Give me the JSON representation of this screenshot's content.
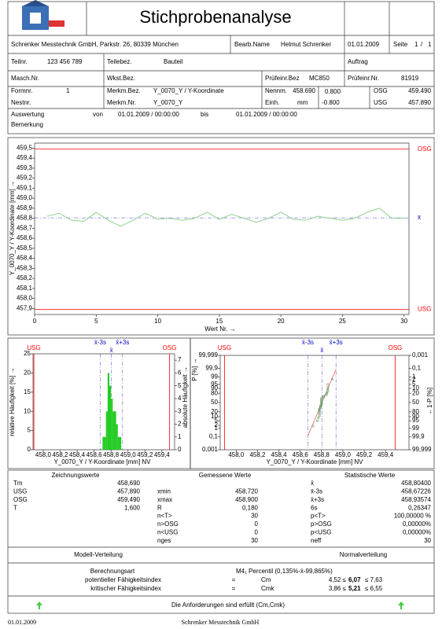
{
  "header": {
    "title": "Stichprobenanalyse",
    "company": "Schrenker Messtechnik GmbH, Parkstr. 26, 80339 München",
    "editor_label": "Bearb.Name",
    "editor": "Helmut Schrenker",
    "date": "01.01.2009",
    "page_label": "Seite",
    "page": "1",
    "page_sep": "/",
    "page_total": "1",
    "part_no_label": "Teilnr.",
    "part_no": "123 456 789",
    "part_name_label": "Teilebez.",
    "part_name": "Bauteil",
    "order_label": "Auftrag",
    "machine_label": "Masch.Nr.",
    "tool_label": "Wkst.Bez.",
    "gauge_name_label": "Prüfeinr.Bez",
    "gauge_name": "MC850",
    "gauge_no_label": "Prüfeinr.Nr.",
    "gauge_no": "81919",
    "form_label": "Formnr.",
    "form": "1",
    "nest_label": "Nestnr.",
    "feature_name_label": "Merkm.Bez.",
    "feature_name": "Y_0070_Y /  Y-Koordinate",
    "feature_no_label": "Merkm.Nr.",
    "feature_no": "Y_0070_Y",
    "nominal_label": "Nennm.",
    "nominal": "458.690",
    "unit_label": "Einh.",
    "unit": "mm",
    "upper_tol": "0.800",
    "lower_tol": "-0.800",
    "osg_label": "OSG",
    "osg": "459.490",
    "usg_label": "USG",
    "usg": "457.890",
    "evaluation_label": "Auswertung",
    "from_label": "von",
    "from": "01.01.2009 / 00:00:00",
    "to_label": "bis",
    "to": "01.01.2009 / 00:00:00",
    "remark_label": "Bemerkung"
  },
  "chart_data": [
    {
      "type": "line",
      "y_label": "Y_0070_Y /  Y-Koordinate [mm] →",
      "x_label": "Wert Nr. →",
      "x": [
        1,
        2,
        3,
        4,
        5,
        6,
        7,
        8,
        9,
        10,
        11,
        12,
        13,
        14,
        15,
        16,
        17,
        18,
        19,
        20,
        21,
        22,
        23,
        24,
        25,
        26,
        27,
        28,
        29,
        30
      ],
      "series": [
        {
          "color": "#8fd18f",
          "values": [
            458.82,
            458.85,
            458.78,
            458.77,
            458.86,
            458.78,
            458.72,
            458.78,
            458.85,
            458.79,
            458.8,
            458.78,
            458.8,
            458.86,
            458.79,
            458.84,
            458.8,
            458.76,
            458.8,
            458.86,
            458.79,
            458.78,
            458.82,
            458.8,
            458.78,
            458.8,
            458.86,
            458.9,
            458.8,
            458.8
          ]
        }
      ],
      "xlim": [
        0,
        30.4
      ],
      "xticks": [
        0,
        5,
        10,
        15,
        20,
        25,
        30
      ],
      "ylim": [
        457.84,
        459.55
      ],
      "yticks": [
        {
          "value": 457.9,
          "label": "457,9"
        },
        {
          "value": 458.0,
          "label": "458,0"
        },
        {
          "value": 458.1,
          "label": "458,1"
        },
        {
          "value": 458.2,
          "label": "458,2"
        },
        {
          "value": 458.3,
          "label": "458,3"
        },
        {
          "value": 458.4,
          "label": "458,4"
        },
        {
          "value": 458.5,
          "label": "458,5"
        },
        {
          "value": 458.6,
          "label": "458,6"
        },
        {
          "value": 458.7,
          "label": "458,7"
        },
        {
          "value": 458.8,
          "label": "458,8"
        },
        {
          "value": 458.9,
          "label": "458,9"
        },
        {
          "value": 459.0,
          "label": "459,0"
        },
        {
          "value": 459.1,
          "label": "459,1"
        },
        {
          "value": 459.2,
          "label": "459,2"
        },
        {
          "value": 459.3,
          "label": "459,3"
        },
        {
          "value": 459.4,
          "label": "459,4"
        },
        {
          "value": 459.5,
          "label": "459,5"
        }
      ],
      "reference_lines": [
        {
          "label": "OSG",
          "value": 459.49,
          "color": "#ff0000"
        },
        {
          "label": "USG",
          "value": 457.89,
          "color": "#ff0000"
        },
        {
          "label": "x̄",
          "value": 458.804,
          "color": "#0000cc",
          "dashed": true
        }
      ]
    },
    {
      "type": "histogram",
      "x_label": "Y_0070_Y / Y-Koordinate [mm]  NV",
      "y_label": "relative Häufigkeit  [%] →",
      "y2_label": "absolute Häufigkeit →",
      "bins": [
        458.7,
        458.72,
        458.74,
        458.76,
        458.78,
        458.8,
        458.82,
        458.84,
        458.86,
        458.88,
        458.9,
        458.92
      ],
      "series": [
        {
          "color": "#22cc22",
          "axis": "y2",
          "values": [
            1,
            1,
            3,
            6,
            5,
            4,
            3,
            3,
            2,
            1,
            1
          ]
        }
      ],
      "xlim": [
        457.88,
        459.55
      ],
      "xticks": [
        {
          "value": 458.0,
          "label": "458,0"
        },
        {
          "value": 458.2,
          "label": "458,2"
        },
        {
          "value": 458.4,
          "label": "458,4"
        },
        {
          "value": 458.6,
          "label": "458,6"
        },
        {
          "value": 458.8,
          "label": "458,8"
        },
        {
          "value": 459.0,
          "label": "459,0"
        },
        {
          "value": 459.2,
          "label": "459,2"
        },
        {
          "value": 459.4,
          "label": "459,4"
        }
      ],
      "ylim": [
        0,
        25
      ],
      "yticks": [
        0,
        5,
        10,
        15,
        20,
        25
      ],
      "y2lim": [
        0,
        7.5
      ],
      "y2ticks": [
        0,
        1,
        2,
        3,
        4,
        5,
        6,
        7
      ],
      "reference_lines": [
        {
          "label": "USG",
          "value": 457.89,
          "color": "#ff0000"
        },
        {
          "label": "x̄-3s",
          "value": 458.67226,
          "color": "#0000cc",
          "dashed": true
        },
        {
          "label": "x̄",
          "value": 458.804,
          "color": "#0000cc",
          "dashed": true
        },
        {
          "label": "x̄+3s",
          "value": 458.93574,
          "color": "#0000cc",
          "dashed": true
        },
        {
          "label": "OSG",
          "value": 459.49,
          "color": "#ff0000"
        }
      ]
    },
    {
      "type": "probability",
      "x_label": "Y_0070_Y / Y-Koordinate [mm]  NV",
      "y_label": "P [%] →",
      "y2_label": "←1-P [%]",
      "yscale": "probit",
      "x": [
        458.72,
        458.76,
        458.77,
        458.78,
        458.78,
        458.78,
        458.78,
        458.78,
        458.78,
        458.79,
        458.79,
        458.79,
        458.8,
        458.8,
        458.8,
        458.8,
        458.8,
        458.8,
        458.8,
        458.8,
        458.82,
        458.82,
        458.84,
        458.85,
        458.85,
        458.86,
        458.86,
        458.86,
        458.86,
        458.9
      ],
      "series": [
        {
          "color": "#669966",
          "values": [
            1.7,
            5.0,
            8.3,
            11.7,
            15.0,
            18.3,
            21.7,
            25.0,
            28.3,
            31.7,
            35.0,
            38.3,
            41.7,
            45.0,
            48.3,
            51.7,
            55.0,
            58.3,
            61.7,
            65.0,
            68.3,
            71.7,
            75.0,
            78.3,
            81.7,
            85.0,
            88.3,
            91.7,
            95.0,
            98.3
          ]
        }
      ],
      "fit": {
        "color": "#ff6666",
        "x": [
          458.67226,
          458.93574
        ],
        "values": [
          0.135,
          99.865
        ]
      },
      "xlim": [
        457.85,
        459.62
      ],
      "xticks": [
        {
          "value": 458.0,
          "label": "458,0"
        },
        {
          "value": 458.2,
          "label": "458,2"
        },
        {
          "value": 458.4,
          "label": "458,4"
        },
        {
          "value": 458.6,
          "label": "458,6"
        },
        {
          "value": 458.8,
          "label": "458,8"
        },
        {
          "value": 459.0,
          "label": "459,0"
        },
        {
          "value": 459.2,
          "label": "459,2"
        },
        {
          "value": 459.4,
          "label": "459,4"
        }
      ],
      "ylim": [
        0.001,
        99.999
      ],
      "yticks": [
        {
          "value": 0.001,
          "label": "0,001"
        },
        {
          "value": 0.1,
          "label": "0,1"
        },
        1,
        2,
        5,
        10,
        20,
        50,
        80,
        90,
        95,
        99,
        {
          "value": 99.9,
          "label": "99,9"
        },
        {
          "value": 99.999,
          "label": "99,999"
        }
      ],
      "y2lim": [
        99.999,
        0.001
      ],
      "y2ticks": [
        {
          "value": 99.999,
          "label": "99,999"
        },
        {
          "value": 99.9,
          "label": "99,9"
        },
        99,
        95,
        90,
        80,
        50,
        20,
        10,
        5,
        2,
        1,
        {
          "value": 0.1,
          "label": "0,1"
        },
        {
          "value": 0.001,
          "label": "0,001"
        }
      ],
      "reference_lines": [
        {
          "label": "USG",
          "value": 457.89,
          "color": "#ff0000"
        },
        {
          "label": "x̄-3s",
          "value": 458.67226,
          "color": "#0000cc",
          "dashed": true
        },
        {
          "label": "x̄",
          "value": 458.804,
          "color": "#0000cc",
          "dashed": true
        },
        {
          "label": "x̄+3s",
          "value": 458.93574,
          "color": "#0000cc",
          "dashed": true
        },
        {
          "label": "OSG",
          "value": 459.49,
          "color": "#ff0000"
        }
      ]
    }
  ],
  "stats": {
    "headers": [
      "Zeichnungswerte",
      "Gemessene Werte",
      "Statistische Werte"
    ],
    "drawing": [
      [
        "Tm",
        "458,690"
      ],
      [
        "USG",
        "457,890"
      ],
      [
        "OSG",
        "459,490"
      ],
      [
        "T",
        "1,600"
      ]
    ],
    "measured": [
      [
        "xmin",
        "458,720"
      ],
      [
        "xmax",
        "458,900"
      ],
      [
        "R",
        "0,180"
      ],
      [
        "n<T>",
        "30"
      ],
      [
        "n>OSG",
        "0"
      ],
      [
        "n<USG",
        "0"
      ],
      [
        "nges",
        "30"
      ]
    ],
    "statistical": [
      [
        "x̄",
        "458,80400"
      ],
      [
        "x̄-3s",
        "458,67226"
      ],
      [
        "x̄+3s",
        "458,93574"
      ],
      [
        "6s",
        "0,26347"
      ],
      [
        "p<T>",
        "100,00000 %"
      ],
      [
        "p>OSG",
        "0,00000%"
      ],
      [
        "p<USG",
        "0,00000%"
      ],
      [
        "neff",
        "30"
      ]
    ],
    "model_label": "Modell-Verteilung",
    "model": "Normalverteilung",
    "method_label": "Berechnungsart",
    "method": "M4₁  Percentil (0,135%-x̄-99,865%)",
    "indices": [
      {
        "label": "potentieller Fähigkeitsindex",
        "eq": "=",
        "symbol": "Cm",
        "lower": "4,52 ≤",
        "value": "6,07",
        "upper": "≤ 7,63"
      },
      {
        "label": "kritischer Fähigkeitsindex",
        "eq": "=",
        "symbol": "Cmk",
        "lower": "3,86 ≤",
        "value": "5,21",
        "upper": "≤ 6,55"
      }
    ],
    "result": "Die Anforderungen sind erfüllt (Cm,Cmk)"
  },
  "footer": {
    "date": "01.01.2009",
    "company": "Schrenker Messtechnik GmbH"
  }
}
